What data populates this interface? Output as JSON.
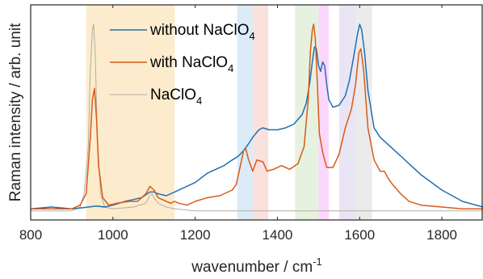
{
  "chart_data": {
    "type": "line",
    "xlabel": "wavenumber / cm",
    "xlabel_sup": "-1",
    "ylabel": "Raman intensity / arb. unit",
    "xlim": [
      800,
      1900
    ],
    "ylim": [
      0,
      1.03
    ],
    "x_ticks": [
      800,
      1000,
      1200,
      1400,
      1600,
      1800
    ],
    "y_ticks_shown": false,
    "grid": false,
    "legend_position": "top-left inside",
    "shaded_bands": [
      {
        "from": 935,
        "to": 1150,
        "color": "#fbe9c4"
      },
      {
        "from": 1302,
        "to": 1340,
        "color": "#d5e8f7"
      },
      {
        "from": 1340,
        "to": 1378,
        "color": "#f8dcd8"
      },
      {
        "from": 1443,
        "to": 1500,
        "color": "#e3eed9"
      },
      {
        "from": 1500,
        "to": 1525,
        "color": "#fbd0fb"
      },
      {
        "from": 1550,
        "to": 1592,
        "color": "#e6e1f2"
      },
      {
        "from": 1592,
        "to": 1630,
        "color": "#e8e8e8"
      }
    ],
    "legend": [
      {
        "label": "without NaClO",
        "sub": "4",
        "color": "#1f6fb4"
      },
      {
        "label": "with NaClO",
        "sub": "4",
        "color": "#d85a1a"
      },
      {
        "label": "NaClO",
        "sub": "4",
        "color": "#b5aca1"
      }
    ],
    "series": [
      {
        "name": "without NaClO4",
        "color": "#1f6fb4",
        "x": [
          800,
          850,
          900,
          920,
          940,
          960,
          980,
          1000,
          1030,
          1050,
          1070,
          1090,
          1100,
          1110,
          1130,
          1150,
          1170,
          1200,
          1230,
          1250,
          1270,
          1290,
          1305,
          1318,
          1328,
          1340,
          1355,
          1365,
          1380,
          1400,
          1420,
          1440,
          1460,
          1470,
          1478,
          1485,
          1490,
          1495,
          1500,
          1505,
          1510,
          1515,
          1520,
          1525,
          1535,
          1550,
          1565,
          1575,
          1585,
          1595,
          1600,
          1605,
          1612,
          1620,
          1635,
          1650,
          1670,
          1700,
          1750,
          1800,
          1850,
          1900
        ],
        "y": [
          0.02,
          0.03,
          0.02,
          0.025,
          0.03,
          0.035,
          0.03,
          0.04,
          0.06,
          0.07,
          0.08,
          0.11,
          0.11,
          0.1,
          0.09,
          0.11,
          0.13,
          0.16,
          0.21,
          0.23,
          0.25,
          0.28,
          0.3,
          0.33,
          0.36,
          0.4,
          0.44,
          0.45,
          0.44,
          0.44,
          0.45,
          0.47,
          0.52,
          0.58,
          0.68,
          0.8,
          0.88,
          0.87,
          0.78,
          0.75,
          0.8,
          0.78,
          0.68,
          0.6,
          0.56,
          0.57,
          0.62,
          0.7,
          0.82,
          0.95,
          1.0,
          0.97,
          0.85,
          0.65,
          0.45,
          0.4,
          0.36,
          0.3,
          0.2,
          0.12,
          0.06,
          0.03
        ]
      },
      {
        "name": "with NaClO4",
        "color": "#d85a1a",
        "x": [
          800,
          850,
          900,
          920,
          935,
          945,
          950,
          955,
          960,
          965,
          975,
          990,
          1010,
          1040,
          1060,
          1080,
          1090,
          1100,
          1110,
          1120,
          1140,
          1150,
          1160,
          1180,
          1200,
          1230,
          1260,
          1290,
          1300,
          1310,
          1318,
          1323,
          1330,
          1340,
          1350,
          1365,
          1375,
          1390,
          1410,
          1430,
          1450,
          1465,
          1475,
          1480,
          1485,
          1488,
          1492,
          1497,
          1502,
          1510,
          1520,
          1535,
          1550,
          1565,
          1580,
          1590,
          1598,
          1603,
          1610,
          1620,
          1635,
          1650,
          1660,
          1670,
          1680,
          1700,
          1720,
          1750,
          1800,
          1850,
          1900
        ],
        "y": [
          0.02,
          0.02,
          0.02,
          0.04,
          0.1,
          0.4,
          0.6,
          0.66,
          0.5,
          0.25,
          0.08,
          0.04,
          0.05,
          0.06,
          0.06,
          0.1,
          0.14,
          0.12,
          0.08,
          0.07,
          0.05,
          0.06,
          0.05,
          0.04,
          0.06,
          0.08,
          0.09,
          0.12,
          0.15,
          0.25,
          0.33,
          0.34,
          0.28,
          0.22,
          0.28,
          0.27,
          0.22,
          0.23,
          0.25,
          0.23,
          0.26,
          0.35,
          0.6,
          0.85,
          0.97,
          1.0,
          0.93,
          0.7,
          0.42,
          0.32,
          0.24,
          0.24,
          0.31,
          0.45,
          0.55,
          0.68,
          0.85,
          0.87,
          0.75,
          0.45,
          0.28,
          0.22,
          0.22,
          0.18,
          0.15,
          0.1,
          0.06,
          0.04,
          0.03,
          0.02,
          0.02
        ]
      },
      {
        "name": "NaClO4",
        "color": "#b5aca1",
        "x": [
          800,
          900,
          920,
          930,
          940,
          945,
          950,
          953,
          957,
          962,
          970,
          980,
          1000,
          1050,
          1080,
          1090,
          1095,
          1100,
          1110,
          1130,
          1150,
          1200,
          1300,
          1400,
          1500,
          1600,
          1700,
          1800,
          1900
        ],
        "y": [
          0.01,
          0.01,
          0.03,
          0.1,
          0.35,
          0.75,
          0.97,
          1.0,
          0.85,
          0.4,
          0.1,
          0.03,
          0.02,
          0.03,
          0.05,
          0.09,
          0.1,
          0.08,
          0.05,
          0.03,
          0.02,
          0.01,
          0.01,
          0.01,
          0.01,
          0.01,
          0.01,
          0.01,
          0.01
        ]
      }
    ]
  }
}
